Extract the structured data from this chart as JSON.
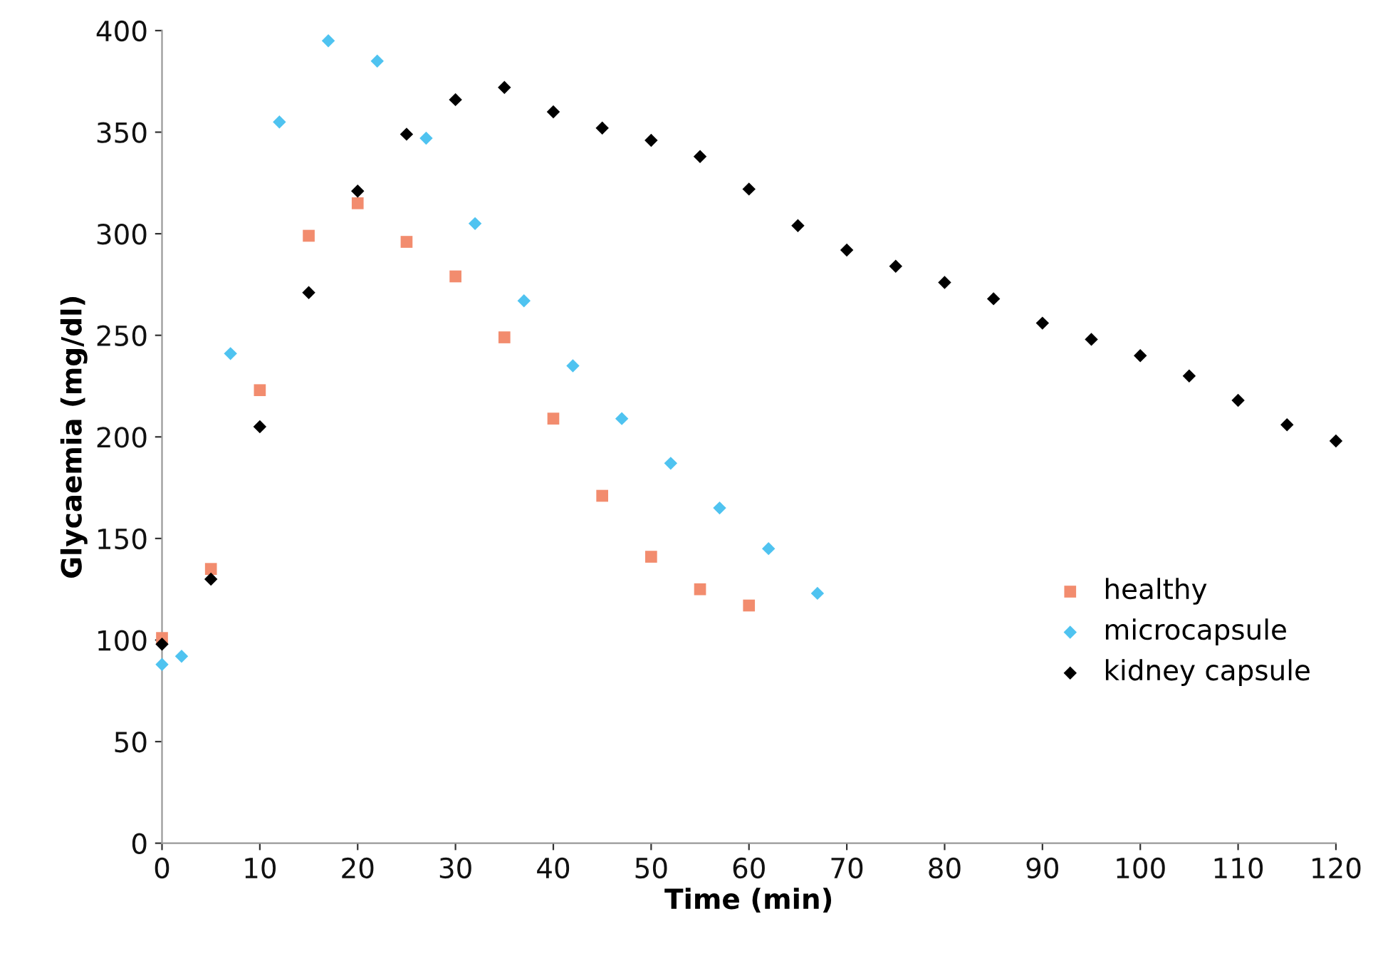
{
  "chart_data": {
    "type": "scatter",
    "xlabel": "Time (min)",
    "ylabel": "Glycaemia (mg/dl)",
    "xlim": [
      0,
      120
    ],
    "xticks": [
      0,
      10,
      20,
      30,
      40,
      50,
      60,
      70,
      80,
      90,
      100,
      110,
      120
    ],
    "ylim": [
      0,
      400
    ],
    "yticks": [
      0,
      50,
      100,
      150,
      200,
      250,
      300,
      350,
      400
    ],
    "grid": false,
    "legend": "right",
    "series": [
      {
        "name": "healthy",
        "color": "#f28c6e",
        "marker": "square",
        "x": [
          0,
          5,
          10,
          15,
          20,
          25,
          30,
          35,
          40,
          45,
          50,
          55,
          60
        ],
        "values": [
          101,
          135,
          223,
          299,
          315,
          296,
          279,
          249,
          209,
          171,
          141,
          125,
          117
        ]
      },
      {
        "name": "microcapsule",
        "color": "#4fc3f0",
        "marker": "diamond",
        "x": [
          0,
          2,
          7,
          12,
          17,
          22,
          27,
          32,
          37,
          42,
          47,
          52,
          57,
          62,
          67
        ],
        "values": [
          88,
          92,
          241,
          355,
          395,
          385,
          347,
          305,
          267,
          235,
          209,
          187,
          165,
          145,
          123
        ]
      },
      {
        "name": "kidney capsule",
        "color": "#000000",
        "marker": "diamond",
        "x": [
          0,
          5,
          10,
          15,
          20,
          25,
          30,
          35,
          40,
          45,
          50,
          55,
          60,
          65,
          70,
          75,
          80,
          85,
          90,
          95,
          100,
          105,
          110,
          115,
          120
        ],
        "values": [
          98,
          130,
          205,
          271,
          321,
          349,
          366,
          372,
          360,
          352,
          346,
          338,
          322,
          304,
          292,
          284,
          276,
          268,
          256,
          248,
          240,
          230,
          218,
          206,
          198
        ]
      }
    ]
  }
}
